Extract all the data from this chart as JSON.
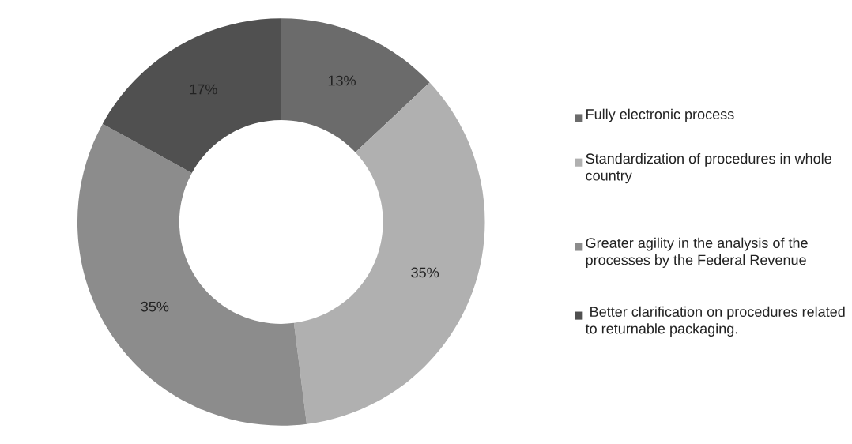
{
  "chart_data": {
    "type": "donut",
    "categories": [
      "Fully electronic process",
      "Standardization of procedures in whole country",
      "Greater agility in the analysis of the processes by the Federal Revenue",
      " Better clarification on procedures related to returnable packaging."
    ],
    "values": [
      13,
      35,
      35,
      17
    ],
    "value_labels": [
      "13%",
      "35%",
      "35%",
      "17%"
    ],
    "colors": [
      "#6b6b6b",
      "#b0b0b0",
      "#8c8c8c",
      "#505050"
    ],
    "legend": "right"
  }
}
